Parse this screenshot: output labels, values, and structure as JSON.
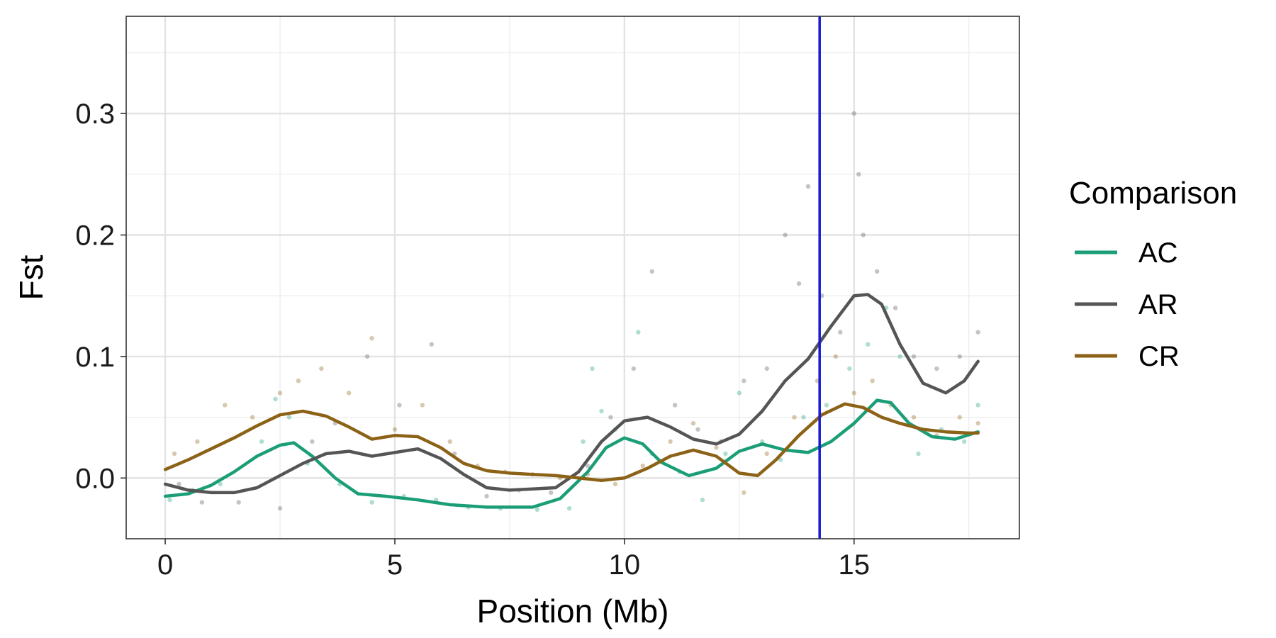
{
  "chart_data": {
    "type": "scatter",
    "xlabel": "Position (Mb)",
    "ylabel": "Fst",
    "xlim": [
      -0.85,
      18.6
    ],
    "ylim": [
      -0.05,
      0.38
    ],
    "x_ticks": [
      0,
      5,
      10,
      15
    ],
    "x_tick_labels": [
      "0",
      "5",
      "10",
      "15"
    ],
    "y_ticks": [
      0.0,
      0.1,
      0.2,
      0.3
    ],
    "y_tick_labels": [
      "0.0",
      "0.1",
      "0.2",
      "0.3"
    ],
    "x_minor_ticks": [
      2.5,
      7.5,
      12.5,
      17.5
    ],
    "y_minor_ticks": [
      0.05,
      0.15,
      0.25,
      0.35
    ],
    "grid": true,
    "vertical_marker": {
      "x": 14.25,
      "color": "#1a1ad6"
    },
    "legend": {
      "title": "Comparison",
      "position": "right"
    },
    "series": [
      {
        "name": "AC",
        "color": "#1b9e77",
        "trend": [
          [
            0,
            -0.015
          ],
          [
            0.5,
            -0.013
          ],
          [
            1,
            -0.006
          ],
          [
            1.5,
            0.005
          ],
          [
            2,
            0.018
          ],
          [
            2.5,
            0.027
          ],
          [
            2.8,
            0.029
          ],
          [
            3.2,
            0.018
          ],
          [
            3.7,
            0.0
          ],
          [
            4.2,
            -0.013
          ],
          [
            4.8,
            -0.015
          ],
          [
            5.5,
            -0.018
          ],
          [
            6.2,
            -0.022
          ],
          [
            7,
            -0.024
          ],
          [
            8,
            -0.024
          ],
          [
            8.6,
            -0.017
          ],
          [
            9.2,
            0.005
          ],
          [
            9.6,
            0.025
          ],
          [
            10,
            0.033
          ],
          [
            10.4,
            0.028
          ],
          [
            10.8,
            0.013
          ],
          [
            11.4,
            0.002
          ],
          [
            12,
            0.008
          ],
          [
            12.5,
            0.022
          ],
          [
            13,
            0.028
          ],
          [
            13.5,
            0.023
          ],
          [
            14,
            0.021
          ],
          [
            14.5,
            0.03
          ],
          [
            15,
            0.045
          ],
          [
            15.5,
            0.064
          ],
          [
            15.8,
            0.062
          ],
          [
            16.2,
            0.045
          ],
          [
            16.7,
            0.034
          ],
          [
            17.2,
            0.032
          ],
          [
            17.7,
            0.038
          ]
        ],
        "points": [
          [
            0.1,
            -0.018
          ],
          [
            0.6,
            -0.01
          ],
          [
            1.2,
            -0.005
          ],
          [
            2.1,
            0.03
          ],
          [
            2.4,
            0.065
          ],
          [
            2.7,
            0.05
          ],
          [
            3.1,
            0.012
          ],
          [
            3.8,
            -0.005
          ],
          [
            4.5,
            -0.02
          ],
          [
            5.2,
            -0.015
          ],
          [
            5.9,
            -0.018
          ],
          [
            6.6,
            -0.024
          ],
          [
            7.3,
            -0.025
          ],
          [
            8.1,
            -0.026
          ],
          [
            8.8,
            -0.025
          ],
          [
            9.1,
            0.03
          ],
          [
            9.3,
            0.09
          ],
          [
            9.5,
            0.055
          ],
          [
            9.8,
            0.04
          ],
          [
            10.3,
            0.12
          ],
          [
            10.6,
            0.02
          ],
          [
            11.2,
            0.005
          ],
          [
            11.7,
            -0.018
          ],
          [
            12.2,
            0.02
          ],
          [
            12.5,
            0.07
          ],
          [
            13.0,
            0.03
          ],
          [
            13.4,
            0.015
          ],
          [
            13.9,
            0.05
          ],
          [
            14.4,
            0.06
          ],
          [
            14.9,
            0.09
          ],
          [
            15.3,
            0.11
          ],
          [
            15.7,
            0.14
          ],
          [
            16.0,
            0.1
          ],
          [
            16.4,
            0.02
          ],
          [
            16.9,
            0.04
          ],
          [
            17.4,
            0.03
          ],
          [
            17.7,
            0.06
          ]
        ]
      },
      {
        "name": "AR",
        "color": "#555555",
        "trend": [
          [
            0,
            -0.005
          ],
          [
            0.5,
            -0.01
          ],
          [
            1,
            -0.012
          ],
          [
            1.5,
            -0.012
          ],
          [
            2,
            -0.008
          ],
          [
            2.5,
            0.002
          ],
          [
            3,
            0.012
          ],
          [
            3.5,
            0.02
          ],
          [
            4,
            0.022
          ],
          [
            4.5,
            0.018
          ],
          [
            5,
            0.021
          ],
          [
            5.5,
            0.024
          ],
          [
            6,
            0.016
          ],
          [
            6.5,
            0.003
          ],
          [
            7,
            -0.008
          ],
          [
            7.5,
            -0.01
          ],
          [
            8,
            -0.009
          ],
          [
            8.5,
            -0.008
          ],
          [
            9,
            0.005
          ],
          [
            9.5,
            0.03
          ],
          [
            10,
            0.047
          ],
          [
            10.5,
            0.05
          ],
          [
            11,
            0.042
          ],
          [
            11.5,
            0.032
          ],
          [
            12,
            0.028
          ],
          [
            12.5,
            0.036
          ],
          [
            13,
            0.055
          ],
          [
            13.5,
            0.08
          ],
          [
            14,
            0.098
          ],
          [
            14.5,
            0.125
          ],
          [
            15,
            0.15
          ],
          [
            15.3,
            0.151
          ],
          [
            15.6,
            0.143
          ],
          [
            16,
            0.11
          ],
          [
            16.5,
            0.078
          ],
          [
            17,
            0.07
          ],
          [
            17.4,
            0.08
          ],
          [
            17.7,
            0.096
          ]
        ],
        "points": [
          [
            0.3,
            -0.005
          ],
          [
            0.8,
            -0.02
          ],
          [
            1.6,
            -0.02
          ],
          [
            2.5,
            -0.025
          ],
          [
            3.2,
            0.03
          ],
          [
            3.7,
            0.045
          ],
          [
            4.4,
            0.1
          ],
          [
            5.1,
            0.06
          ],
          [
            5.8,
            0.11
          ],
          [
            6.3,
            0.02
          ],
          [
            7.0,
            -0.015
          ],
          [
            7.7,
            -0.01
          ],
          [
            8.4,
            -0.012
          ],
          [
            9.2,
            0.01
          ],
          [
            9.7,
            0.05
          ],
          [
            10.2,
            0.09
          ],
          [
            10.6,
            0.17
          ],
          [
            11.1,
            0.06
          ],
          [
            11.6,
            0.04
          ],
          [
            12.1,
            0.03
          ],
          [
            12.6,
            0.08
          ],
          [
            13.1,
            0.09
          ],
          [
            13.5,
            0.2
          ],
          [
            13.8,
            0.16
          ],
          [
            14.0,
            0.24
          ],
          [
            14.3,
            0.15
          ],
          [
            14.7,
            0.12
          ],
          [
            15.0,
            0.3
          ],
          [
            15.1,
            0.25
          ],
          [
            15.2,
            0.2
          ],
          [
            15.5,
            0.17
          ],
          [
            15.9,
            0.14
          ],
          [
            16.3,
            0.1
          ],
          [
            16.8,
            0.09
          ],
          [
            17.3,
            0.1
          ],
          [
            17.7,
            0.12
          ]
        ]
      },
      {
        "name": "CR",
        "color": "#8c6217",
        "trend": [
          [
            0,
            0.007
          ],
          [
            0.5,
            0.015
          ],
          [
            1,
            0.024
          ],
          [
            1.5,
            0.033
          ],
          [
            2,
            0.043
          ],
          [
            2.5,
            0.052
          ],
          [
            3,
            0.055
          ],
          [
            3.5,
            0.051
          ],
          [
            4,
            0.042
          ],
          [
            4.5,
            0.032
          ],
          [
            5,
            0.035
          ],
          [
            5.5,
            0.034
          ],
          [
            6,
            0.025
          ],
          [
            6.5,
            0.012
          ],
          [
            7,
            0.006
          ],
          [
            7.5,
            0.004
          ],
          [
            8,
            0.003
          ],
          [
            8.5,
            0.002
          ],
          [
            9,
            0.0
          ],
          [
            9.5,
            -0.002
          ],
          [
            10,
            0.0
          ],
          [
            10.5,
            0.008
          ],
          [
            11,
            0.018
          ],
          [
            11.5,
            0.023
          ],
          [
            12,
            0.018
          ],
          [
            12.5,
            0.004
          ],
          [
            12.9,
            0.002
          ],
          [
            13.3,
            0.015
          ],
          [
            13.8,
            0.035
          ],
          [
            14.3,
            0.052
          ],
          [
            14.8,
            0.061
          ],
          [
            15.2,
            0.058
          ],
          [
            15.6,
            0.05
          ],
          [
            16,
            0.045
          ],
          [
            16.5,
            0.04
          ],
          [
            17,
            0.038
          ],
          [
            17.5,
            0.037
          ],
          [
            17.7,
            0.037
          ]
        ],
        "points": [
          [
            0.2,
            0.02
          ],
          [
            0.7,
            0.03
          ],
          [
            1.3,
            0.06
          ],
          [
            1.9,
            0.05
          ],
          [
            2.5,
            0.07
          ],
          [
            2.9,
            0.08
          ],
          [
            3.4,
            0.09
          ],
          [
            4.0,
            0.07
          ],
          [
            4.5,
            0.115
          ],
          [
            5.0,
            0.04
          ],
          [
            5.6,
            0.06
          ],
          [
            6.2,
            0.03
          ],
          [
            6.8,
            0.01
          ],
          [
            7.4,
            0.005
          ],
          [
            8.0,
            0.003
          ],
          [
            8.6,
            0.0
          ],
          [
            9.2,
            0.003
          ],
          [
            9.8,
            -0.005
          ],
          [
            10.4,
            0.01
          ],
          [
            11.0,
            0.03
          ],
          [
            11.5,
            0.045
          ],
          [
            12.0,
            0.025
          ],
          [
            12.6,
            -0.012
          ],
          [
            13.1,
            0.02
          ],
          [
            13.7,
            0.05
          ],
          [
            14.2,
            0.08
          ],
          [
            14.6,
            0.1
          ],
          [
            15.0,
            0.07
          ],
          [
            15.4,
            0.08
          ],
          [
            15.8,
            0.06
          ],
          [
            16.3,
            0.05
          ],
          [
            16.8,
            0.035
          ],
          [
            17.3,
            0.05
          ],
          [
            17.7,
            0.045
          ]
        ]
      }
    ]
  }
}
